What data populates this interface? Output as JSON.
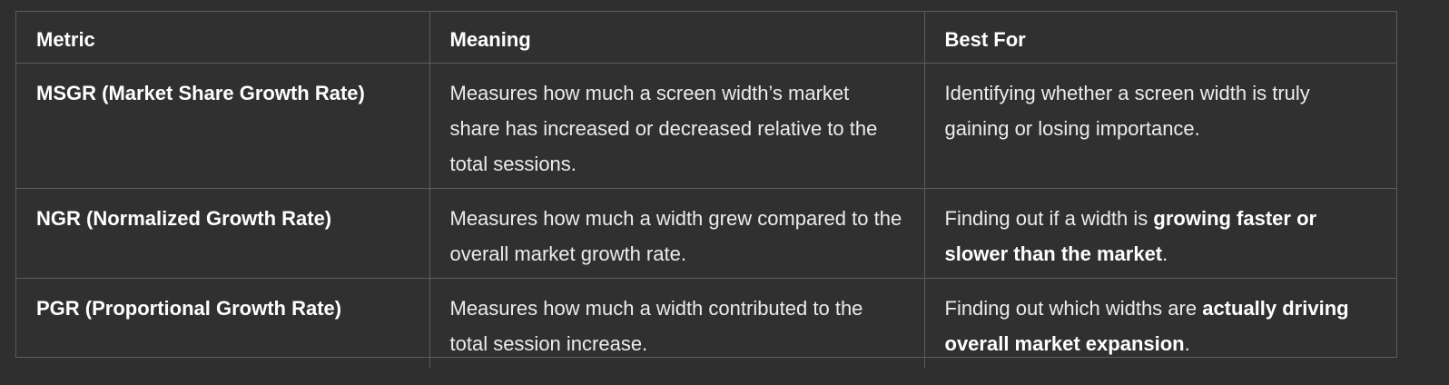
{
  "header": {
    "metric": "Metric",
    "meaning": "Meaning",
    "best_for": "Best For"
  },
  "rows": [
    {
      "metric": "MSGR (Market Share Growth Rate)",
      "meaning": "Measures how much a screen width’s market share has increased or decreased relative to the total sessions.",
      "best_for_pre": "Identifying whether a screen width is truly gaining or losing importance.",
      "best_for_bold": "",
      "best_for_post": ""
    },
    {
      "metric": "NGR (Normalized Growth Rate)",
      "meaning": "Measures how much a width grew compared to the overall market growth rate.",
      "best_for_pre": "Finding out if a width is ",
      "best_for_bold": "growing faster or slower than the market",
      "best_for_post": "."
    },
    {
      "metric": "PGR (Proportional Growth Rate)",
      "meaning": "Measures how much a width contributed to the total session increase.",
      "best_for_pre": "Finding out which widths are ",
      "best_for_bold": "actually driving overall market expansion",
      "best_for_post": "."
    }
  ]
}
